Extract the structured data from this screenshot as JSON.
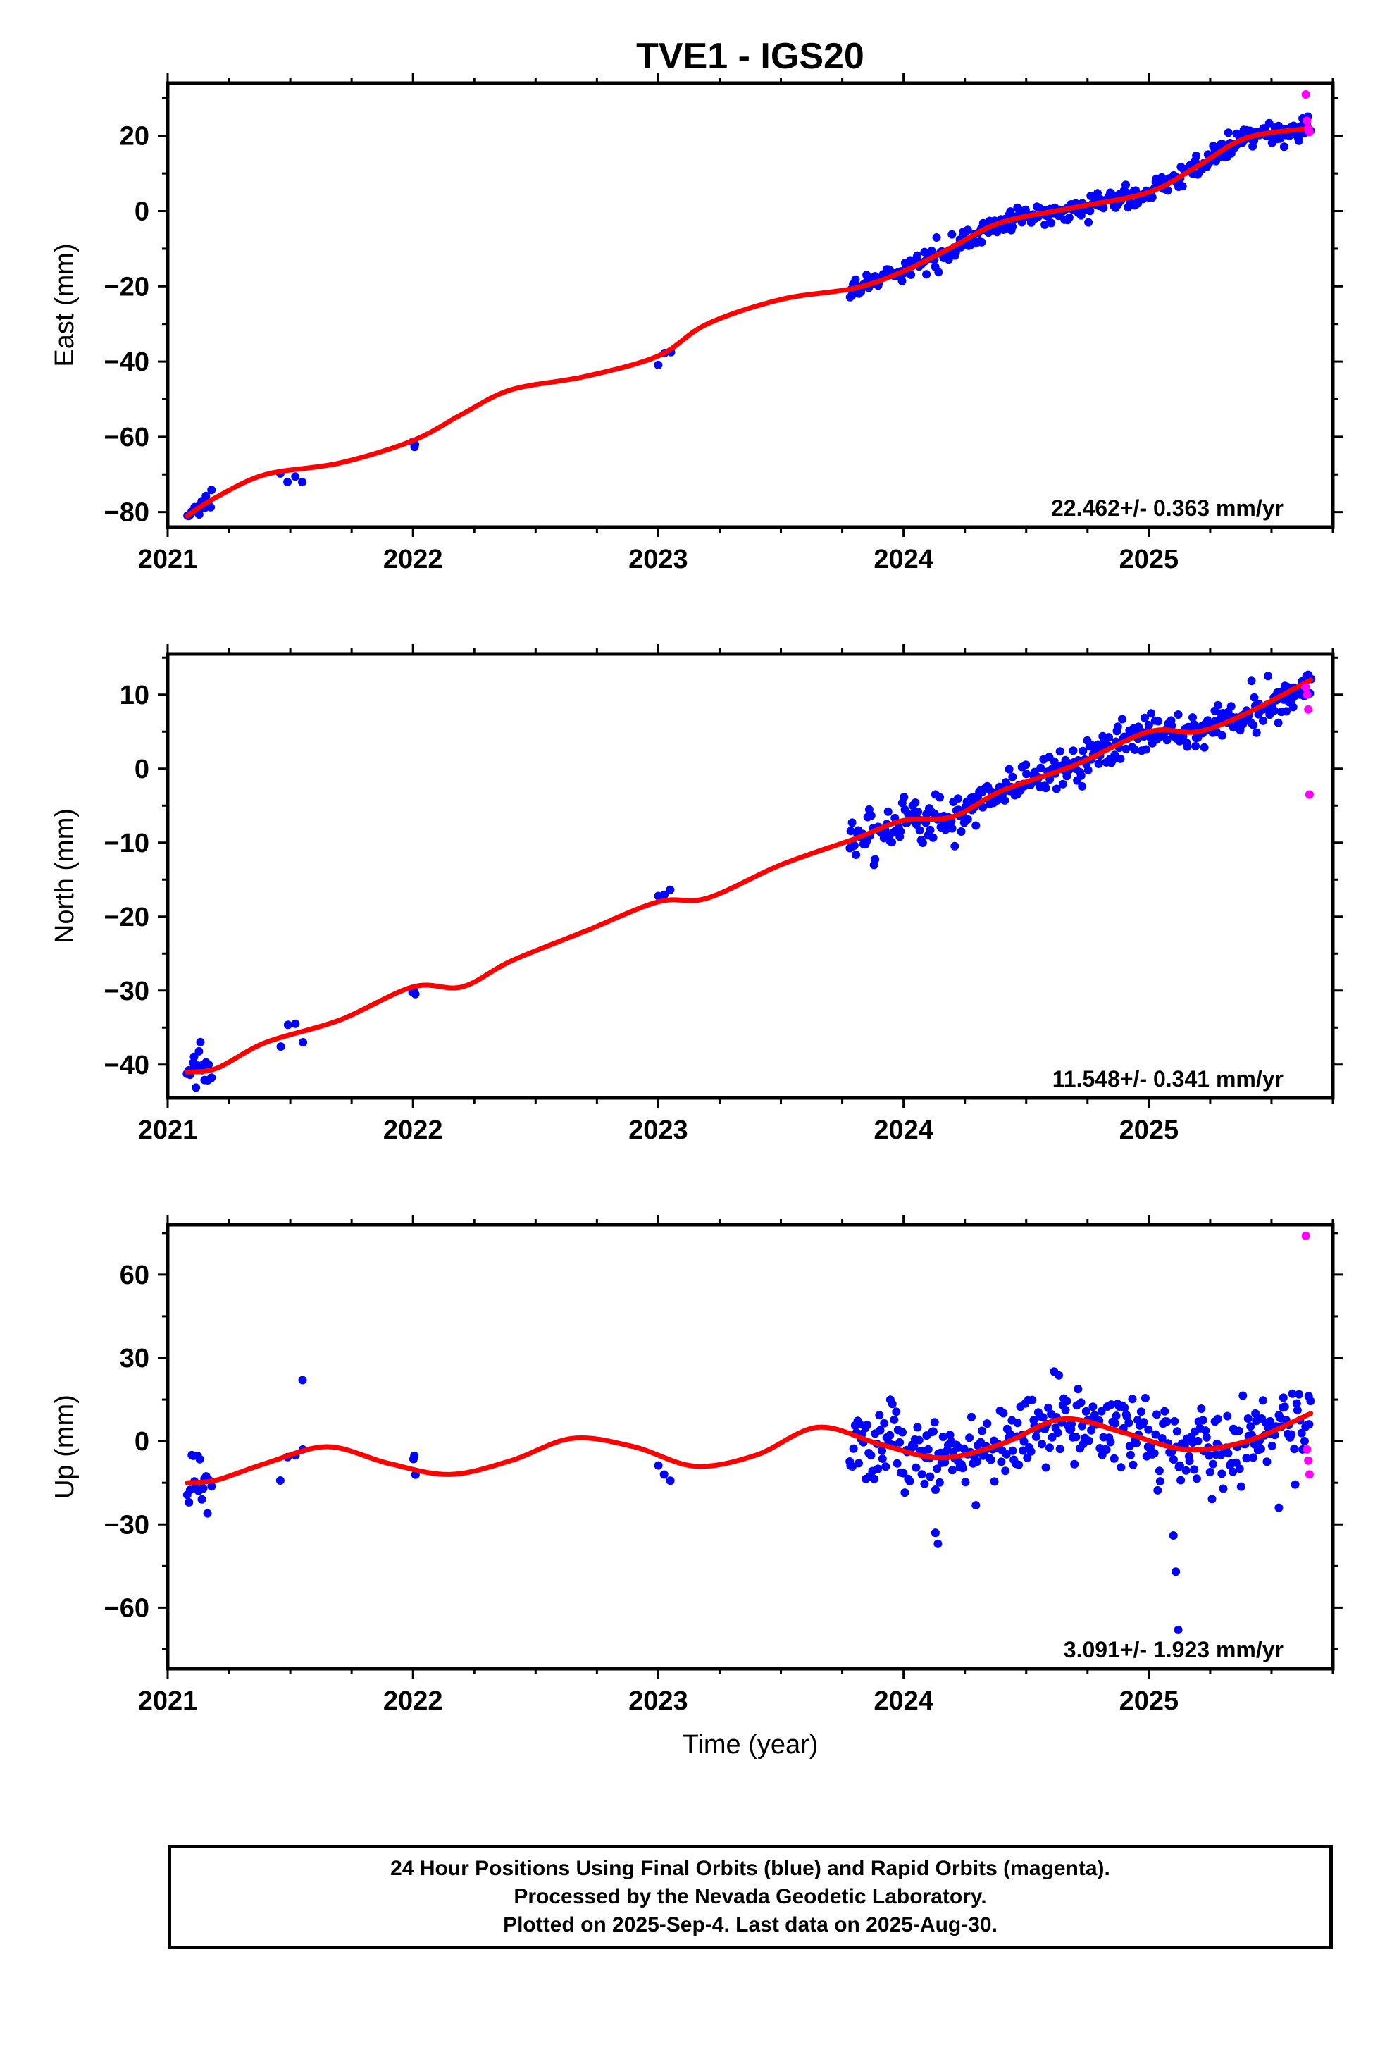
{
  "page": {
    "footer": {
      "line1": "24 Hour Positions Using Final Orbits (blue) and Rapid Orbits (magenta).",
      "line2": "Processed by the Nevada Geodetic Laboratory.",
      "line3": "Plotted on 2025-Sep-4. Last data on 2025-Aug-30."
    }
  },
  "colors": {
    "final": "#0000ff",
    "rapid": "#ff00ff",
    "model": "#ff0000",
    "axis": "#000000"
  },
  "chart_data": [
    {
      "type": "scatter",
      "title": "TVE1 - IGS20",
      "ylabel": "East (mm)",
      "xlabel": "",
      "xlim": [
        2021.0,
        2025.75
      ],
      "ylim": [
        -84,
        34
      ],
      "x_ticks": [
        2021,
        2022,
        2023,
        2024,
        2025
      ],
      "x_tick_labels": [
        "2021",
        "2022",
        "2023",
        "2024",
        "2025"
      ],
      "y_ticks": [
        -80,
        -60,
        -40,
        -20,
        0,
        20
      ],
      "y_tick_labels": [
        "−80",
        "−60",
        "−40",
        "−20",
        "0",
        "20"
      ],
      "annotation": "22.462+/- 0.363 mm/yr",
      "rate": 22.462,
      "rate_sigma": 0.363,
      "noise": 1.4,
      "series": [
        {
          "name": "Final Orbits (blue)",
          "segments": [
            [
              2021.08,
              2021.18,
              18
            ],
            [
              2021.46,
              2021.55,
              4
            ],
            [
              2022.0,
              2022.01,
              3
            ],
            [
              2023.0,
              2023.05,
              3
            ],
            [
              2023.78,
              2025.66,
              360
            ]
          ]
        },
        {
          "name": "Rapid Orbits (magenta)",
          "x": [
            2025.64,
            2025.645,
            2025.65,
            2025.655
          ],
          "y": [
            31,
            24,
            22,
            21
          ]
        }
      ],
      "model": {
        "name": "Model fit (red)",
        "x": [
          2021.08,
          2021.2,
          2021.4,
          2021.7,
          2022.0,
          2022.2,
          2022.4,
          2022.7,
          2023.0,
          2023.2,
          2023.5,
          2023.8,
          2024.0,
          2024.2,
          2024.4,
          2024.7,
          2025.0,
          2025.2,
          2025.4,
          2025.66
        ],
        "y": [
          -81,
          -76,
          -70,
          -67,
          -61,
          -54,
          -47.5,
          -44,
          -38.5,
          -30,
          -23.5,
          -20.5,
          -16,
          -9.5,
          -3,
          1,
          5,
          12,
          19.5,
          22
        ]
      }
    },
    {
      "type": "scatter",
      "title": "",
      "ylabel": "North (mm)",
      "xlabel": "",
      "xlim": [
        2021.0,
        2025.75
      ],
      "ylim": [
        -44.5,
        15.5
      ],
      "x_ticks": [
        2021,
        2022,
        2023,
        2024,
        2025
      ],
      "x_tick_labels": [
        "2021",
        "2022",
        "2023",
        "2024",
        "2025"
      ],
      "y_ticks": [
        -40,
        -30,
        -20,
        -10,
        0,
        10
      ],
      "y_tick_labels": [
        "−40",
        "−30",
        "−20",
        "−10",
        "0",
        "10"
      ],
      "annotation": "11.548+/- 0.341 mm/yr",
      "rate": 11.548,
      "rate_sigma": 0.341,
      "noise": 1.5,
      "series": [
        {
          "name": "Final Orbits (blue)",
          "segments": [
            [
              2021.08,
              2021.18,
              18
            ],
            [
              2021.46,
              2021.55,
              4
            ],
            [
              2022.0,
              2022.01,
              3
            ],
            [
              2023.0,
              2023.05,
              3
            ],
            [
              2023.78,
              2025.66,
              360
            ]
          ]
        },
        {
          "name": "Rapid Orbits (magenta)",
          "x": [
            2025.64,
            2025.645,
            2025.65,
            2025.655
          ],
          "y": [
            11,
            10,
            8,
            -3.5
          ]
        }
      ],
      "model": {
        "name": "Model fit (red)",
        "x": [
          2021.08,
          2021.2,
          2021.4,
          2021.7,
          2022.0,
          2022.2,
          2022.4,
          2022.7,
          2023.0,
          2023.2,
          2023.5,
          2023.8,
          2024.0,
          2024.2,
          2024.4,
          2024.7,
          2025.0,
          2025.2,
          2025.4,
          2025.66
        ],
        "y": [
          -41,
          -40.5,
          -37,
          -34,
          -29.5,
          -29.5,
          -26,
          -22,
          -18,
          -17.5,
          -13,
          -9.5,
          -7,
          -6.5,
          -3,
          0.5,
          5,
          5,
          7.5,
          12
        ]
      }
    },
    {
      "type": "scatter",
      "title": "",
      "ylabel": "Up (mm)",
      "xlabel": "Time (year)",
      "xlim": [
        2021.0,
        2025.75
      ],
      "ylim": [
        -82,
        78
      ],
      "x_ticks": [
        2021,
        2022,
        2023,
        2024,
        2025
      ],
      "x_tick_labels": [
        "2021",
        "2022",
        "2023",
        "2024",
        "2025"
      ],
      "y_ticks": [
        -60,
        -30,
        0,
        30,
        60
      ],
      "y_tick_labels": [
        "−60",
        "−30",
        "0",
        "30",
        "60"
      ],
      "annotation": "3.091+/- 1.923 mm/yr",
      "rate": 3.091,
      "rate_sigma": 1.923,
      "noise": 7,
      "series": [
        {
          "name": "Final Orbits (blue)",
          "segments": [
            [
              2021.08,
              2021.18,
              18
            ],
            [
              2021.46,
              2021.55,
              4
            ],
            [
              2022.0,
              2022.01,
              3
            ],
            [
              2023.0,
              2023.05,
              3
            ],
            [
              2023.78,
              2025.66,
              360
            ]
          ]
        },
        {
          "name": "Rapid Orbits (magenta)",
          "x": [
            2025.64,
            2025.645,
            2025.65,
            2025.655
          ],
          "y": [
            74,
            -3,
            -7,
            -12
          ]
        }
      ],
      "outliers": {
        "x": [
          2021.55,
          2025.1,
          2025.11,
          2025.12,
          2025.53,
          2024.13,
          2024.14
        ],
        "y": [
          22,
          -34,
          -47,
          -68,
          -24,
          -33,
          -37
        ]
      },
      "model": {
        "name": "Model fit (red)",
        "x": [
          2021.08,
          2021.2,
          2021.4,
          2021.65,
          2021.9,
          2022.15,
          2022.4,
          2022.65,
          2022.9,
          2023.15,
          2023.4,
          2023.65,
          2023.9,
          2024.15,
          2024.4,
          2024.65,
          2024.9,
          2025.15,
          2025.4,
          2025.66
        ],
        "y": [
          -15,
          -14,
          -8,
          -2,
          -8,
          -12,
          -7,
          1,
          -2,
          -9,
          -5,
          5,
          -1,
          -6,
          -1,
          8,
          3,
          -3,
          0,
          10
        ]
      }
    }
  ]
}
